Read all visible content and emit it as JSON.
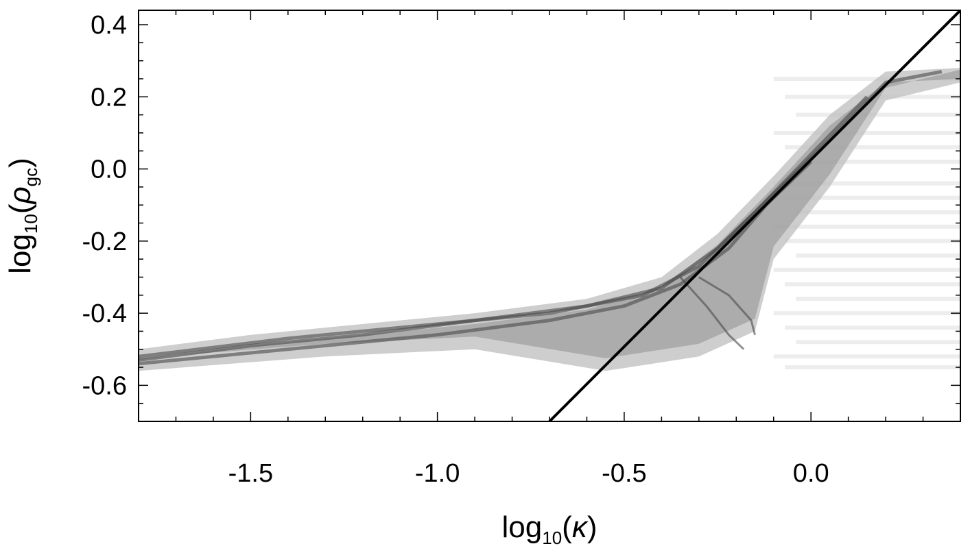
{
  "chart_data": {
    "type": "heatmap",
    "title": "",
    "xlabel": {
      "base": "log",
      "sub": "10",
      "arg_open": "(",
      "symbol": "κ",
      "sub2": "",
      "arg_close": ")"
    },
    "ylabel": {
      "base": "log",
      "sub": "10",
      "arg_open": "(",
      "symbol": "ρ",
      "sub2": "gc",
      "arg_close": ")"
    },
    "xlim": [
      -1.8,
      0.4
    ],
    "ylim": [
      -0.7,
      0.44
    ],
    "x_ticks": [
      -1.5,
      -1.0,
      -0.5,
      0.0
    ],
    "x_tick_labels": [
      "-1.5",
      "-1.0",
      "-0.5",
      "0.0"
    ],
    "y_ticks": [
      -0.6,
      -0.4,
      -0.2,
      0.0,
      0.2,
      0.4
    ],
    "y_tick_labels": [
      "-0.6",
      "-0.4",
      "-0.2",
      "0.0",
      "0.2",
      "0.4"
    ],
    "reference_line": {
      "x": [
        -0.7,
        0.4
      ],
      "y": [
        -0.7,
        0.44
      ],
      "color": "#000000"
    },
    "density": {
      "color": "#000000",
      "upper_envelope": [
        [
          -1.8,
          -0.5
        ],
        [
          -1.5,
          -0.46
        ],
        [
          -1.2,
          -0.43
        ],
        [
          -0.9,
          -0.4
        ],
        [
          -0.6,
          -0.36
        ],
        [
          -0.4,
          -0.3
        ],
        [
          -0.25,
          -0.18
        ],
        [
          -0.1,
          -0.02
        ],
        [
          0.05,
          0.15
        ],
        [
          0.2,
          0.27
        ],
        [
          0.4,
          0.28
        ]
      ],
      "lower_envelope": [
        [
          0.4,
          0.24
        ],
        [
          0.2,
          0.19
        ],
        [
          0.05,
          -0.05
        ],
        [
          -0.1,
          -0.25
        ],
        [
          -0.15,
          -0.45
        ],
        [
          -0.3,
          -0.52
        ],
        [
          -0.55,
          -0.56
        ],
        [
          -0.9,
          -0.5
        ],
        [
          -1.3,
          -0.52
        ],
        [
          -1.8,
          -0.56
        ]
      ],
      "ridges": [
        [
          [
            -1.8,
            -0.53
          ],
          [
            -1.5,
            -0.49
          ],
          [
            -1.2,
            -0.46
          ],
          [
            -0.9,
            -0.42
          ],
          [
            -0.6,
            -0.38
          ],
          [
            -0.4,
            -0.33
          ],
          [
            -0.25,
            -0.22
          ],
          [
            -0.1,
            -0.07
          ],
          [
            0.05,
            0.08
          ],
          [
            0.2,
            0.24
          ],
          [
            0.35,
            0.27
          ]
        ],
        [
          [
            -1.8,
            -0.52
          ],
          [
            -1.4,
            -0.47
          ],
          [
            -1.0,
            -0.43
          ],
          [
            -0.7,
            -0.4
          ],
          [
            -0.45,
            -0.35
          ],
          [
            -0.3,
            -0.27
          ],
          [
            -0.15,
            -0.12
          ],
          [
            0.0,
            0.04
          ],
          [
            0.15,
            0.2
          ]
        ],
        [
          [
            -1.8,
            -0.54
          ],
          [
            -1.4,
            -0.5
          ],
          [
            -1.0,
            -0.46
          ],
          [
            -0.7,
            -0.42
          ],
          [
            -0.5,
            -0.38
          ],
          [
            -0.35,
            -0.32
          ],
          [
            -0.22,
            -0.22
          ],
          [
            -0.12,
            -0.1
          ],
          [
            0.0,
            0.02
          ]
        ],
        [
          [
            -0.35,
            -0.3
          ],
          [
            -0.28,
            -0.38
          ],
          [
            -0.22,
            -0.46
          ],
          [
            -0.18,
            -0.5
          ]
        ],
        [
          [
            -0.3,
            -0.3
          ],
          [
            -0.22,
            -0.35
          ],
          [
            -0.16,
            -0.42
          ],
          [
            -0.15,
            -0.46
          ]
        ]
      ],
      "streak_rows": [
        0.25,
        0.2,
        0.15,
        0.1,
        0.06,
        0.02,
        -0.04,
        -0.08,
        -0.12,
        -0.16,
        -0.2,
        -0.24,
        -0.28,
        -0.32,
        -0.36,
        -0.4,
        -0.44,
        -0.48,
        -0.52,
        -0.55
      ],
      "grey_fill": "#bdbdbd",
      "light_fill": "#ebebeb"
    }
  }
}
